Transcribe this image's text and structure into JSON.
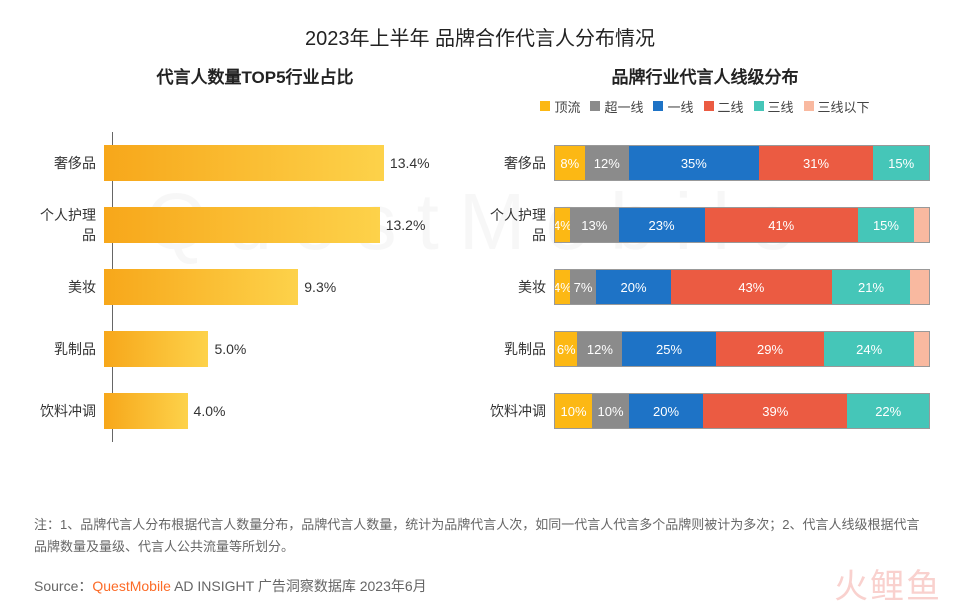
{
  "title": "2023年上半年 品牌合作代言人分布情况",
  "watermark": "QuestMobile",
  "bottom_brand": "火鲤鱼",
  "left_chart": {
    "title": "代言人数量TOP5行业占比",
    "type": "bar",
    "max": 18,
    "bar_gradient_start": "#f7a71a",
    "bar_gradient_end": "#fdd24a",
    "axis_color": "#666666",
    "label_fontsize": 14,
    "categories": [
      "奢侈品",
      "个人护理品",
      "美妆",
      "乳制品",
      "饮料冲调"
    ],
    "rows": [
      {
        "label": "奢侈品",
        "value": 13.4,
        "text": "13.4%"
      },
      {
        "label": "个人护理品",
        "value": 13.2,
        "text": "13.2%"
      },
      {
        "label": "美妆",
        "value": 9.3,
        "text": "9.3%"
      },
      {
        "label": "乳制品",
        "value": 5.0,
        "text": "5.0%"
      },
      {
        "label": "饮料冲调",
        "value": 4.0,
        "text": "4.0%"
      }
    ]
  },
  "right_chart": {
    "title": "品牌行业代言人线级分布",
    "type": "stacked-bar-100",
    "legend": [
      {
        "label": "顶流",
        "color": "#fcb814"
      },
      {
        "label": "超一线",
        "color": "#8b8b8b"
      },
      {
        "label": "一线",
        "color": "#1e73c6"
      },
      {
        "label": "二线",
        "color": "#eb5b42"
      },
      {
        "label": "三线",
        "color": "#45c6b8"
      },
      {
        "label": "三线以下",
        "color": "#f9b9a0"
      }
    ],
    "rows": [
      {
        "label": "奢侈品",
        "segments": [
          {
            "value": 8,
            "text": "8%",
            "color": "#fcb814"
          },
          {
            "value": 12,
            "text": "12%",
            "color": "#8b8b8b"
          },
          {
            "value": 35,
            "text": "35%",
            "color": "#1e73c6"
          },
          {
            "value": 31,
            "text": "31%",
            "color": "#eb5b42"
          },
          {
            "value": 15,
            "text": "15%",
            "color": "#45c6b8"
          },
          {
            "value": 0,
            "text": "",
            "color": "#f9b9a0"
          }
        ]
      },
      {
        "label": "个人护理品",
        "segments": [
          {
            "value": 4,
            "text": "4%",
            "color": "#fcb814"
          },
          {
            "value": 13,
            "text": "13%",
            "color": "#8b8b8b"
          },
          {
            "value": 23,
            "text": "23%",
            "color": "#1e73c6"
          },
          {
            "value": 41,
            "text": "41%",
            "color": "#eb5b42"
          },
          {
            "value": 15,
            "text": "15%",
            "color": "#45c6b8"
          },
          {
            "value": 4,
            "text": "",
            "color": "#f9b9a0"
          }
        ]
      },
      {
        "label": "美妆",
        "segments": [
          {
            "value": 4,
            "text": "4%",
            "color": "#fcb814"
          },
          {
            "value": 7,
            "text": "7%",
            "color": "#8b8b8b"
          },
          {
            "value": 20,
            "text": "20%",
            "color": "#1e73c6"
          },
          {
            "value": 43,
            "text": "43%",
            "color": "#eb5b42"
          },
          {
            "value": 21,
            "text": "21%",
            "color": "#45c6b8"
          },
          {
            "value": 5,
            "text": "",
            "color": "#f9b9a0"
          }
        ]
      },
      {
        "label": "乳制品",
        "segments": [
          {
            "value": 6,
            "text": "6%",
            "color": "#fcb814"
          },
          {
            "value": 12,
            "text": "12%",
            "color": "#8b8b8b"
          },
          {
            "value": 25,
            "text": "25%",
            "color": "#1e73c6"
          },
          {
            "value": 29,
            "text": "29%",
            "color": "#eb5b42"
          },
          {
            "value": 24,
            "text": "24%",
            "color": "#45c6b8"
          },
          {
            "value": 4,
            "text": "",
            "color": "#f9b9a0"
          }
        ]
      },
      {
        "label": "饮料冲调",
        "segments": [
          {
            "value": 10,
            "text": "10%",
            "color": "#fcb814"
          },
          {
            "value": 10,
            "text": "10%",
            "color": "#8b8b8b"
          },
          {
            "value": 20,
            "text": "20%",
            "color": "#1e73c6"
          },
          {
            "value": 39,
            "text": "39%",
            "color": "#eb5b42"
          },
          {
            "value": 22,
            "text": "22%",
            "color": "#45c6b8"
          },
          {
            "value": 0,
            "text": "",
            "color": "#f9b9a0"
          }
        ]
      }
    ]
  },
  "note": "注：1、品牌代言人分布根据代言人数量分布，品牌代言人数量，统计为品牌代言人次，如同一代言人代言多个品牌则被计为多次；2、代言人线级根据代言品牌数量及量级、代言人公共流量等所划分。",
  "source_label": "Source：",
  "source_brand": "QuestMobile",
  "source_rest": " AD INSIGHT 广告洞察数据库 2023年6月"
}
